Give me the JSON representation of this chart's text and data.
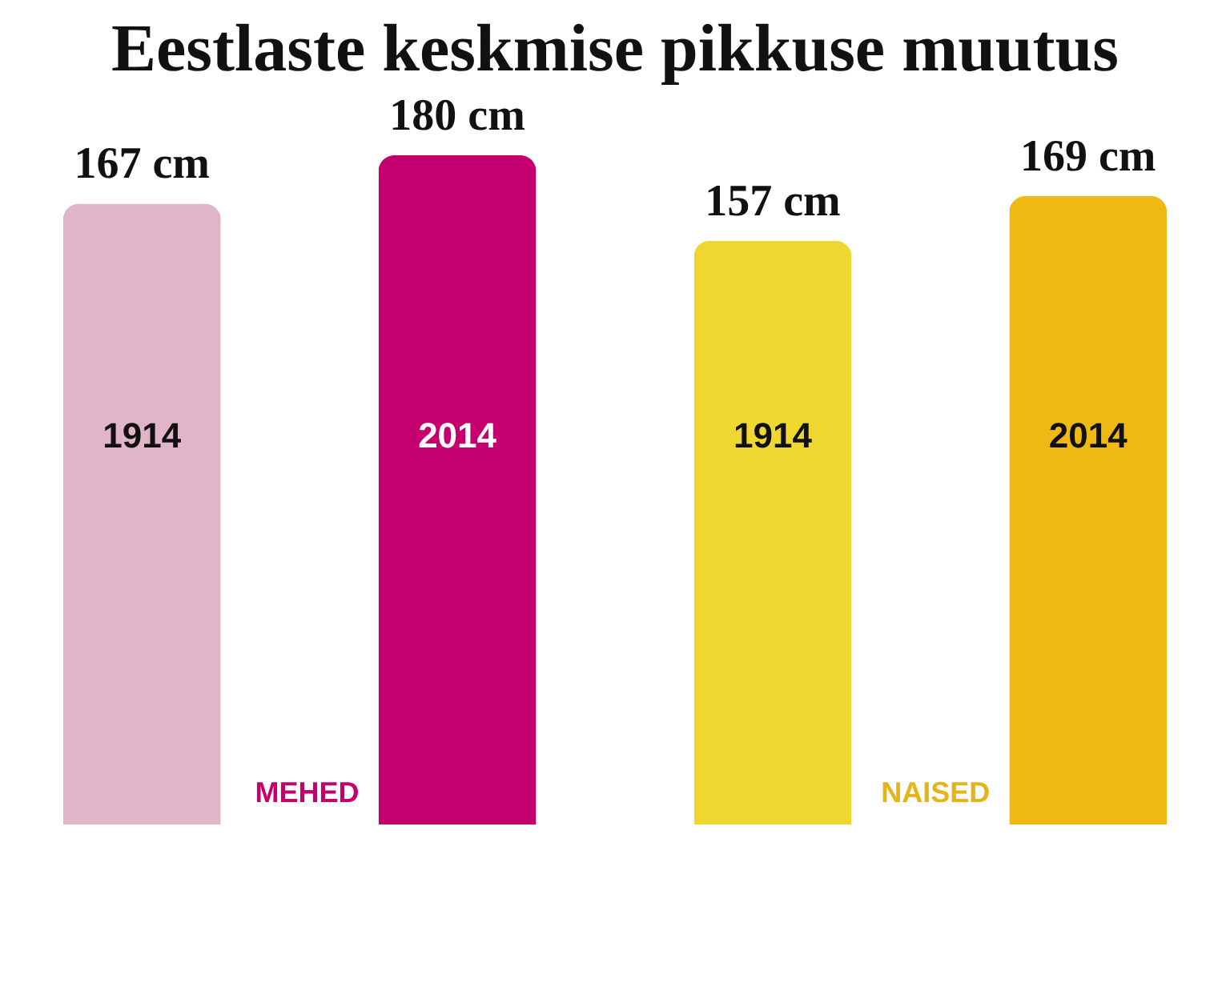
{
  "chart_data": {
    "type": "bar",
    "title": "Eestlaste keskmise pikkuse muutus",
    "categories": [
      "1914",
      "2014",
      "1914",
      "2014"
    ],
    "series": [
      {
        "name": "MEHED",
        "color": "#c5006e",
        "colors": [
          "#e0b5c8",
          "#c5006e",
          null,
          null
        ],
        "values": [
          167,
          180,
          null,
          null
        ],
        "value_labels": [
          "167 cm",
          "180 cm",
          null,
          null
        ]
      },
      {
        "name": "NAISED",
        "color": "#e6b418",
        "colors": [
          null,
          null,
          "#f0d630",
          "#f0b812"
        ],
        "values": [
          null,
          null,
          157,
          169
        ],
        "value_labels": [
          null,
          null,
          "157 cm",
          "169 cm"
        ]
      }
    ]
  }
}
